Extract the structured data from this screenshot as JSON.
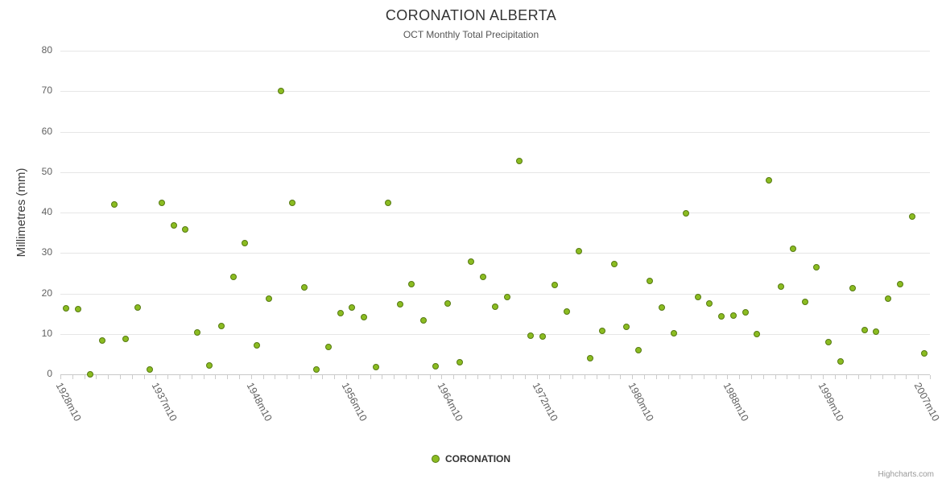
{
  "title": "CORONATION ALBERTA",
  "subtitle": "OCT Monthly Total Precipitation",
  "y_axis_title": "Millimetres (mm)",
  "legend": {
    "series_label": "CORONATION"
  },
  "credits": "Highcharts.com",
  "chart_data": {
    "type": "scatter",
    "title": "CORONATION ALBERTA",
    "subtitle": "OCT Monthly Total Precipitation",
    "ylabel": "Millimetres (mm)",
    "xlabel": "",
    "ylim": [
      0,
      80
    ],
    "y_ticks": [
      0,
      10,
      20,
      30,
      40,
      50,
      60,
      70,
      80
    ],
    "grid": true,
    "legend_position": "bottom",
    "x_tick_labels": [
      "1928m10",
      "1937m10",
      "1948m10",
      "1956m10",
      "1964m10",
      "1972m10",
      "1980m10",
      "1988m10",
      "1999m10",
      "2007m10"
    ],
    "x_label_every": 8,
    "n_points": 73,
    "marker": {
      "fill": "#8bbc21",
      "stroke": "#567a12"
    },
    "colors": {
      "gridline": "#e6e6e6",
      "axis_line": "#c8c8c8",
      "tick": "#cccccc",
      "axis_label": "#606060"
    },
    "series": [
      {
        "name": "CORONATION",
        "values": [
          16.3,
          16.1,
          0,
          8.4,
          42,
          8.7,
          16.6,
          1.2,
          42.4,
          36.8,
          35.9,
          10.3,
          2.1,
          12,
          24.1,
          32.5,
          7.2,
          18.8,
          70,
          42.4,
          21.4,
          1.1,
          6.7,
          15.2,
          16.5,
          14.2,
          1.7,
          42.3,
          17.4,
          22.3,
          13.4,
          1.9,
          17.6,
          3,
          27.9,
          24,
          16.7,
          19.2,
          52.8,
          9.5,
          9.4,
          22.1,
          15.6,
          30.4,
          4,
          10.8,
          27.3,
          11.8,
          6,
          23.1,
          16.6,
          10.1,
          39.9,
          19.1,
          17.5,
          14.4,
          14.5,
          15.4,
          9.9,
          48,
          21.7,
          31.1,
          17.9,
          26.4,
          7.9,
          3.2,
          21.2,
          11,
          10.6,
          18.7,
          22.2,
          39,
          5.2
        ]
      }
    ]
  }
}
